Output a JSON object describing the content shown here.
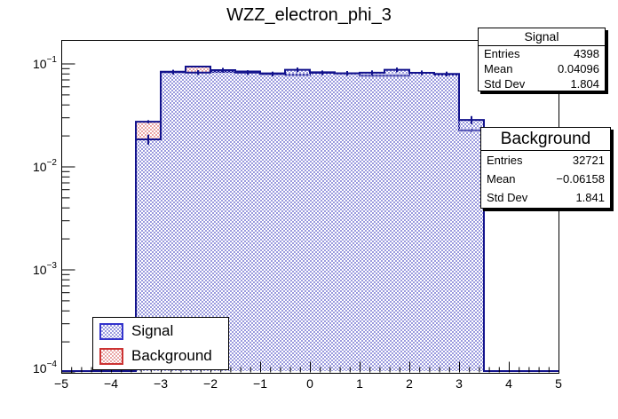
{
  "title": "WZZ_electron_phi_3",
  "colors": {
    "canvas_bg": "#ffffff",
    "frame": "#000000",
    "hist_line": "#12128c",
    "signal_fill": "#9a9ade",
    "background_fill": "#e9a6a6",
    "signal_legend_border": "#3333cc",
    "background_legend_border": "#cc3333"
  },
  "chart_data": {
    "type": "bar",
    "subtype": "overlaid-step-histograms-log-y",
    "title": "WZZ_electron_phi_3",
    "grid": false,
    "x_range": [
      -5,
      5
    ],
    "y_log_min": -4,
    "y_log_max": -0.767,
    "bin_width": 0.5,
    "bin_edges": [
      -3.5,
      -3.0,
      -2.5,
      -2.0,
      -1.5,
      -1.0,
      -0.5,
      0.0,
      0.5,
      1.0,
      1.5,
      2.0,
      2.5,
      3.0,
      3.5
    ],
    "series": [
      {
        "name": "Background",
        "entries": 32721,
        "values": [
          0.0275,
          0.084,
          0.0942,
          0.0836,
          0.0845,
          0.081,
          0.0782,
          0.083,
          0.081,
          0.077,
          0.0768,
          0.082,
          0.0788,
          0.0226
        ]
      },
      {
        "name": "Signal",
        "entries": 4398,
        "values": [
          0.0185,
          0.0834,
          0.0826,
          0.0871,
          0.0826,
          0.08,
          0.0877,
          0.082,
          0.081,
          0.0822,
          0.0877,
          0.082,
          0.08,
          0.0286
        ]
      }
    ],
    "x_ticks": [
      {
        "v": -5,
        "label": "−5"
      },
      {
        "v": -4,
        "label": "−4"
      },
      {
        "v": -3,
        "label": "−3"
      },
      {
        "v": -2,
        "label": "−2"
      },
      {
        "v": -1,
        "label": "−1"
      },
      {
        "v": 0,
        "label": "0"
      },
      {
        "v": 1,
        "label": "1"
      },
      {
        "v": 2,
        "label": "2"
      },
      {
        "v": 3,
        "label": "3"
      },
      {
        "v": 4,
        "label": "4"
      },
      {
        "v": 5,
        "label": "5"
      }
    ],
    "x_minor_tick_step": 0.2,
    "y_ticks": [
      {
        "v": 0.1,
        "label_base": "10",
        "label_exp": "−1"
      },
      {
        "v": 0.01,
        "label_base": "10",
        "label_exp": "−2"
      },
      {
        "v": 0.001,
        "label_base": "10",
        "label_exp": "−3"
      },
      {
        "v": 0.0001,
        "label_base": "10",
        "label_exp": "−4"
      }
    ]
  },
  "stats": {
    "signal": {
      "title": "Signal",
      "rows": [
        {
          "label": "Entries",
          "value": "4398"
        },
        {
          "label": "Mean",
          "value": "0.04096"
        },
        {
          "label": "Std Dev",
          "value": "1.804"
        }
      ]
    },
    "background": {
      "title": "Background",
      "rows": [
        {
          "label": "Entries",
          "value": "32721"
        },
        {
          "label": "Mean",
          "value": "−0.06158"
        },
        {
          "label": "Std Dev",
          "value": "1.841"
        }
      ]
    }
  },
  "legend": {
    "items": [
      {
        "label": "Signal"
      },
      {
        "label": "Background"
      }
    ]
  }
}
